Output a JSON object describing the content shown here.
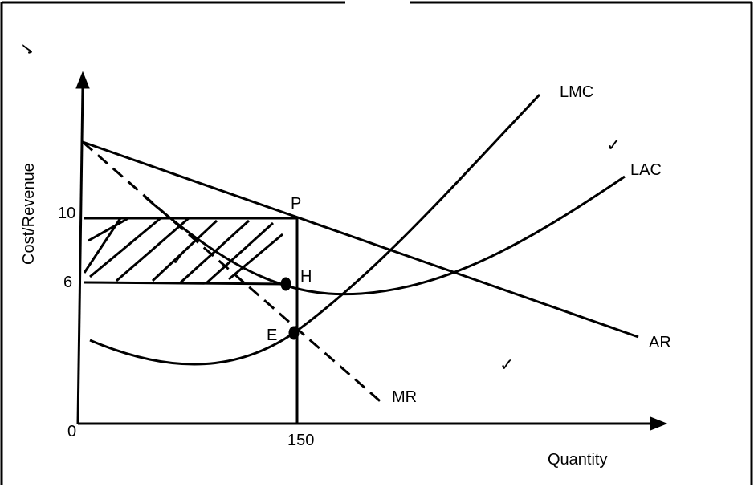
{
  "diagram": {
    "y_axis_label": "Cost/Revenue",
    "y_axis_check": "✓",
    "x_axis_label": "Quantity",
    "origin_label": "0",
    "y_ticks": [
      "10",
      "6"
    ],
    "x_ticks": [
      "150"
    ],
    "curves": {
      "lmc": "LMC",
      "lac": "LAC",
      "ar": "AR",
      "mr": "MR"
    },
    "points": {
      "p": "P",
      "h": "H",
      "e": "E"
    },
    "checks": [
      "✓",
      "✓",
      "✓"
    ]
  }
}
